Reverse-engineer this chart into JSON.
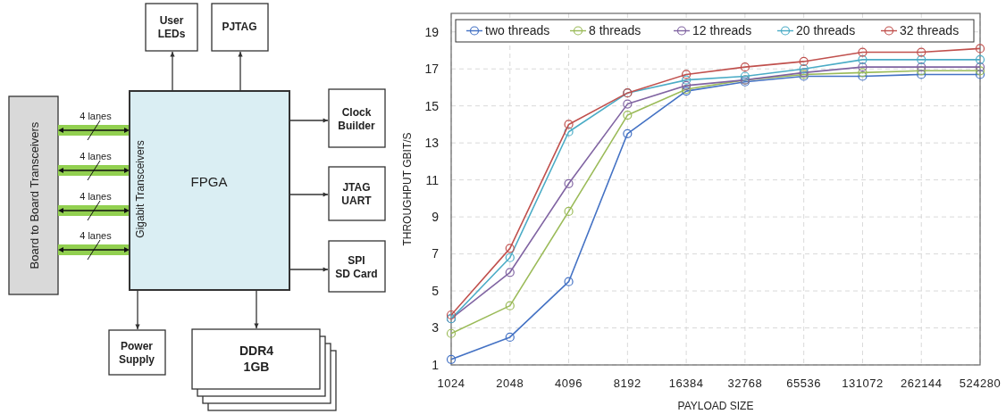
{
  "chart_data": [
    {
      "type": "other",
      "annotations": [
        "User\nLEDs",
        "PJTAG",
        "Board to Board Transceivers",
        "4 lanes",
        "4 lanes",
        "4 lanes",
        "4 lanes",
        "Gigabit Transceivers",
        "FPGA",
        "Clock\nBuilder",
        "JTAG\nUART",
        "SPI\nSD Card",
        "Power\nSupply",
        "DDR4\n1GB"
      ]
    },
    {
      "type": "line",
      "xlabel": "PAYLOAD SIZE",
      "ylabel": "THROUGHPUT GBIT/S",
      "categories": [
        "1024",
        "2048",
        "4096",
        "8192",
        "16384",
        "32768",
        "65536",
        "131072",
        "262144",
        "524280"
      ],
      "ylim": [
        1,
        20
      ],
      "yticks": [
        1,
        3,
        5,
        7,
        9,
        11,
        13,
        15,
        17,
        19
      ],
      "grid": true,
      "legend": "top",
      "marker": "circle",
      "line_style": "solid",
      "series": [
        {
          "name": "two threads",
          "color": "#4472c4",
          "values": [
            1.3,
            2.5,
            5.5,
            13.5,
            15.8,
            16.3,
            16.6,
            16.6,
            16.7,
            16.7
          ]
        },
        {
          "name": "8 threads",
          "color": "#9bbb59",
          "values": [
            2.7,
            4.2,
            9.3,
            14.5,
            15.9,
            16.4,
            16.7,
            16.8,
            16.9,
            16.9
          ]
        },
        {
          "name": "12 threads",
          "color": "#8064a2",
          "values": [
            3.5,
            6.0,
            10.8,
            15.1,
            16.1,
            16.4,
            16.8,
            17.1,
            17.1,
            17.1
          ]
        },
        {
          "name": "20 threads",
          "color": "#4bacc6",
          "values": [
            3.5,
            6.8,
            13.6,
            15.7,
            16.4,
            16.6,
            17.0,
            17.5,
            17.5,
            17.5
          ]
        },
        {
          "name": "32 threads",
          "color": "#c0504d",
          "values": [
            3.7,
            7.3,
            14.0,
            15.7,
            16.7,
            17.1,
            17.4,
            17.9,
            17.9,
            18.1
          ]
        }
      ]
    }
  ]
}
